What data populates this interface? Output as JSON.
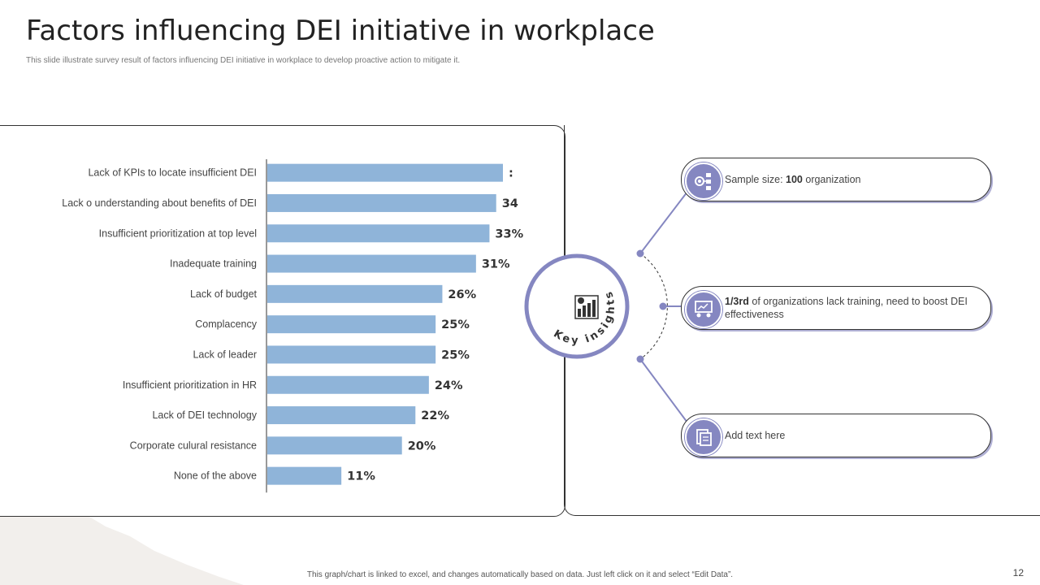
{
  "header": {
    "title": "Factors influencing DEI initiative in workplace",
    "subtitle": "This slide illustrate survey result of factors influencing DEI initiative in workplace to develop proactive action to mitigate it."
  },
  "chart_data": {
    "type": "bar",
    "orientation": "horizontal",
    "categories": [
      "Lack of KPIs to locate insufficient DEI",
      "Lack o understanding about benefits of DEI",
      "Insufficient prioritization at top level",
      "Inadequate training",
      "Lack of budget",
      "Complacency",
      "Lack of leader",
      "Insufficient prioritization in HR",
      "Lack of DEI technology",
      "Corporate culural resistance",
      "None of the above"
    ],
    "values": [
      35,
      34,
      33,
      31,
      26,
      25,
      25,
      24,
      22,
      20,
      11
    ],
    "data_labels": [
      ":",
      "34",
      "33%",
      "31%",
      "26%",
      "25%",
      "25%",
      "24%",
      "22%",
      "20%",
      "11%"
    ],
    "bar_color": "#8fb4d9",
    "xlim": [
      0,
      40
    ]
  },
  "insights": {
    "badge_label": "Key insights",
    "accent_color": "#8587c1",
    "cards": [
      {
        "bold": "",
        "prefix": "Sample size: ",
        "strong": "100",
        "suffix": " organization",
        "icon": "org-chart-icon"
      },
      {
        "prefix": "",
        "strong": "1/3rd",
        "suffix": " of organizations lack training, need to boost DEI effectiveness",
        "icon": "training-presentation-icon"
      },
      {
        "prefix": "Add text here",
        "strong": "",
        "suffix": "",
        "icon": "documents-icon"
      }
    ]
  },
  "footer": {
    "note": "This graph/chart is linked to excel, and changes automatically based on data. Just left click on it and select “Edit Data”.",
    "page_number": "12"
  }
}
